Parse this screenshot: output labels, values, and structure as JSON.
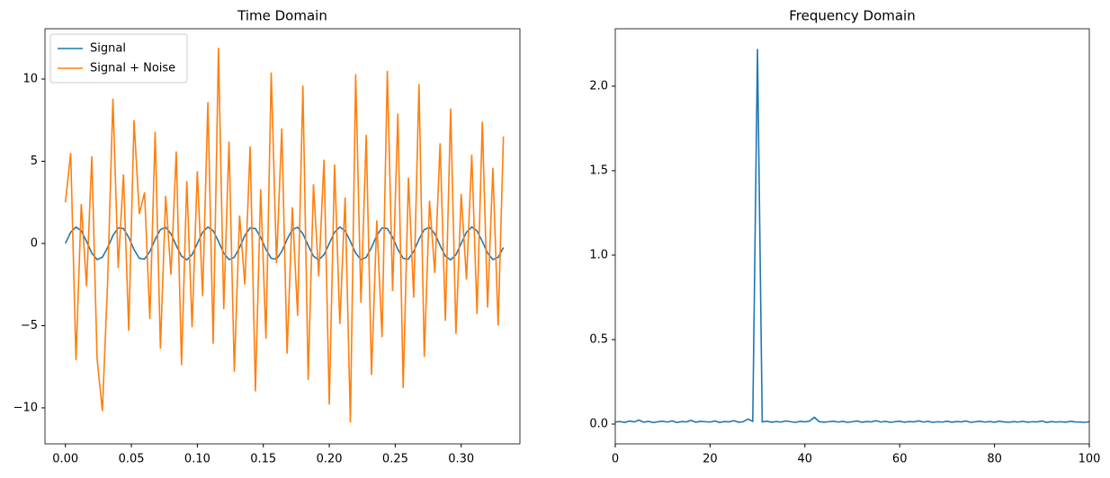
{
  "chart_data": [
    {
      "type": "line",
      "title": "Time Domain",
      "x": [
        0,
        0.004,
        0.008,
        0.012,
        0.016,
        0.02,
        0.024,
        0.028,
        0.032,
        0.036,
        0.04,
        0.044,
        0.048,
        0.052,
        0.056,
        0.06,
        0.064,
        0.068,
        0.072,
        0.076,
        0.08,
        0.084,
        0.088,
        0.092,
        0.096,
        0.1,
        0.104,
        0.108,
        0.112,
        0.116,
        0.12,
        0.124,
        0.128,
        0.132,
        0.136,
        0.14,
        0.144,
        0.148,
        0.152,
        0.156,
        0.16,
        0.164,
        0.168,
        0.172,
        0.176,
        0.18,
        0.184,
        0.188,
        0.192,
        0.196,
        0.2,
        0.204,
        0.208,
        0.212,
        0.216,
        0.22,
        0.224,
        0.228,
        0.232,
        0.236,
        0.24,
        0.244,
        0.248,
        0.252,
        0.256,
        0.26,
        0.264,
        0.268,
        0.272,
        0.276,
        0.28,
        0.284,
        0.288,
        0.292,
        0.296,
        0.3,
        0.304,
        0.308,
        0.312,
        0.316,
        0.32,
        0.324,
        0.328,
        0.332
      ],
      "series": [
        {
          "name": "Signal",
          "color": "#1f77b4",
          "values": [
            0,
            0.685,
            0.998,
            0.771,
            0.125,
            -0.588,
            -0.982,
            -0.844,
            -0.249,
            0.482,
            0.951,
            0.905,
            0.368,
            -0.368,
            -0.905,
            -0.951,
            -0.482,
            0.249,
            0.844,
            0.982,
            0.588,
            -0.125,
            -0.771,
            -0.998,
            -0.685,
            0,
            0.685,
            0.998,
            0.771,
            0.125,
            -0.588,
            -0.982,
            -0.844,
            -0.249,
            0.482,
            0.951,
            0.905,
            0.368,
            -0.368,
            -0.905,
            -0.951,
            -0.482,
            0.249,
            0.844,
            0.982,
            0.588,
            -0.125,
            -0.771,
            -0.998,
            -0.685,
            0,
            0.685,
            0.998,
            0.771,
            0.125,
            -0.588,
            -0.982,
            -0.844,
            -0.249,
            0.482,
            0.951,
            0.905,
            0.368,
            -0.368,
            -0.905,
            -0.951,
            -0.482,
            0.249,
            0.844,
            0.982,
            0.588,
            -0.125,
            -0.771,
            -0.998,
            -0.685,
            0,
            0.685,
            0.998,
            0.771,
            0.125,
            -0.588,
            -0.982,
            -0.844,
            -0.249
          ]
        },
        {
          "name": "Signal + Noise",
          "color": "#ff7f0e",
          "values": [
            2.5,
            5.5,
            -7.1,
            2.4,
            -2.6,
            5.3,
            -7.0,
            -10.2,
            -2.3,
            8.8,
            -1.5,
            4.2,
            -5.3,
            7.5,
            1.8,
            3.1,
            -4.6,
            6.8,
            -6.4,
            2.9,
            -1.9,
            5.6,
            -7.4,
            3.8,
            -5.1,
            4.4,
            -3.2,
            8.6,
            -6.1,
            11.9,
            -4.0,
            6.2,
            -7.8,
            1.7,
            -2.5,
            5.9,
            -9.0,
            3.3,
            -5.8,
            10.4,
            -1.2,
            7.0,
            -6.7,
            2.2,
            -4.4,
            9.6,
            -8.3,
            3.6,
            -2.0,
            5.1,
            -9.8,
            4.8,
            -4.9,
            2.8,
            -10.9,
            10.3,
            -3.6,
            6.6,
            -8.0,
            1.4,
            -5.7,
            10.5,
            -2.9,
            7.9,
            -8.8,
            4.0,
            -3.3,
            9.7,
            -6.9,
            2.6,
            -1.8,
            6.1,
            -4.7,
            8.2,
            -5.5,
            3.0,
            -2.2,
            5.4,
            -4.3,
            7.4,
            -3.9,
            4.6,
            -5.0,
            6.5
          ]
        }
      ],
      "xlim": [
        -0.0155,
        0.3445
      ],
      "xticks": [
        {
          "value": 0,
          "label": "0.00"
        },
        {
          "value": 0.05,
          "label": "0.05"
        },
        {
          "value": 0.1,
          "label": "0.10"
        },
        {
          "value": 0.15,
          "label": "0.15"
        },
        {
          "value": 0.2,
          "label": "0.20"
        },
        {
          "value": 0.25,
          "label": "0.25"
        },
        {
          "value": 0.3,
          "label": "0.30"
        }
      ],
      "ylim": [
        -12.19,
        13.06
      ],
      "yticks": [
        {
          "value": -10,
          "label": "−10"
        },
        {
          "value": -5,
          "label": "−5"
        },
        0,
        5,
        10
      ],
      "legend": "upper left"
    },
    {
      "type": "line",
      "title": "Frequency Domain",
      "x": [
        0,
        1,
        2,
        3,
        4,
        5,
        6,
        7,
        8,
        9,
        10,
        11,
        12,
        13,
        14,
        15,
        16,
        17,
        18,
        19,
        20,
        21,
        22,
        23,
        24,
        25,
        26,
        27,
        28,
        29,
        30,
        31,
        32,
        33,
        34,
        35,
        36,
        37,
        38,
        39,
        40,
        41,
        42,
        43,
        44,
        45,
        46,
        47,
        48,
        49,
        50,
        51,
        52,
        53,
        54,
        55,
        56,
        57,
        58,
        59,
        60,
        61,
        62,
        63,
        64,
        65,
        66,
        67,
        68,
        69,
        70,
        71,
        72,
        73,
        74,
        75,
        76,
        77,
        78,
        79,
        80,
        81,
        82,
        83,
        84,
        85,
        86,
        87,
        88,
        89,
        90,
        91,
        92,
        93,
        94,
        95,
        96,
        97,
        98,
        99,
        100
      ],
      "series": [
        {
          "name": null,
          "color": "#1f77b4",
          "values": [
            0.012,
            0.015,
            0.01,
            0.018,
            0.013,
            0.024,
            0.011,
            0.016,
            0.009,
            0.014,
            0.017,
            0.012,
            0.019,
            0.01,
            0.015,
            0.013,
            0.022,
            0.011,
            0.016,
            0.014,
            0.012,
            0.018,
            0.01,
            0.015,
            0.013,
            0.02,
            0.011,
            0.014,
            0.03,
            0.016,
            2.22,
            0.013,
            0.017,
            0.011,
            0.015,
            0.012,
            0.019,
            0.014,
            0.01,
            0.016,
            0.013,
            0.018,
            0.04,
            0.015,
            0.011,
            0.014,
            0.017,
            0.012,
            0.016,
            0.01,
            0.014,
            0.018,
            0.011,
            0.015,
            0.013,
            0.02,
            0.012,
            0.016,
            0.01,
            0.014,
            0.017,
            0.011,
            0.015,
            0.013,
            0.019,
            0.012,
            0.016,
            0.01,
            0.014,
            0.012,
            0.017,
            0.011,
            0.015,
            0.013,
            0.018,
            0.01,
            0.014,
            0.016,
            0.012,
            0.015,
            0.011,
            0.017,
            0.013,
            0.01,
            0.015,
            0.012,
            0.016,
            0.011,
            0.014,
            0.013,
            0.018,
            0.01,
            0.015,
            0.012,
            0.014,
            0.011,
            0.016,
            0.013,
            0.012,
            0.01,
            0.014
          ]
        }
      ],
      "xlim": [
        0,
        100
      ],
      "xticks": [
        0,
        20,
        40,
        60,
        80,
        100
      ],
      "ylim": [
        -0.117,
        2.34
      ],
      "yticks": [
        {
          "value": 0,
          "label": "0.0"
        },
        {
          "value": 0.5,
          "label": "0.5"
        },
        {
          "value": 1,
          "label": "1.0"
        },
        {
          "value": 1.5,
          "label": "1.5"
        },
        {
          "value": 2,
          "label": "2.0"
        }
      ]
    }
  ]
}
